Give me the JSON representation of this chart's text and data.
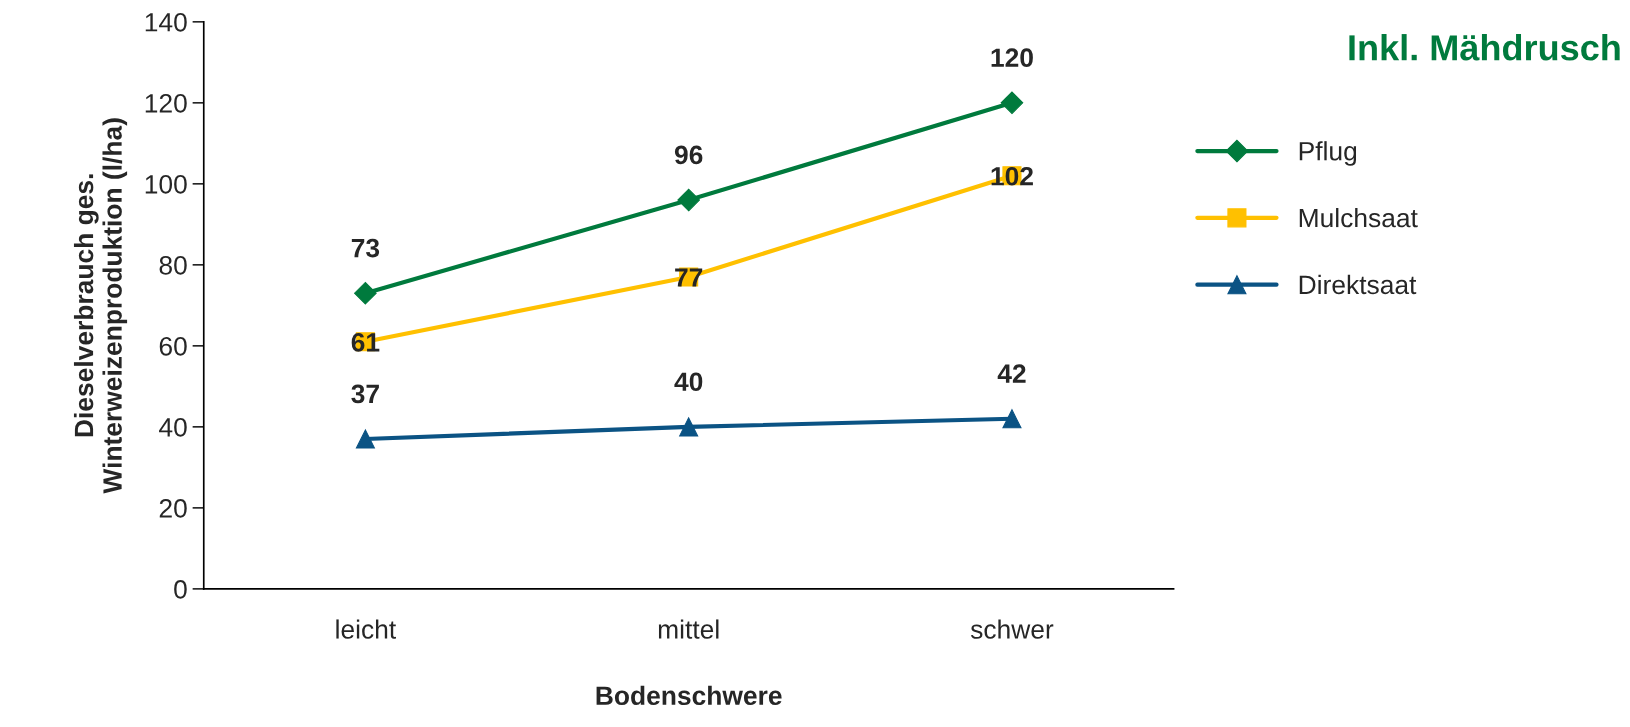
{
  "chart_data": {
    "type": "line",
    "title": "Inkl. Mähdrusch",
    "xlabel": "Bodenschwere",
    "ylabel": "Dieselverbrauch ges.\nWinterweizenproduktion (l/ha)",
    "categories": [
      "leicht",
      "mittel",
      "schwer"
    ],
    "series": [
      {
        "name": "Pflug",
        "color": "#007a3d",
        "marker": "diamond",
        "values": [
          73,
          96,
          120
        ]
      },
      {
        "name": "Mulchsaat",
        "color": "#ffc000",
        "marker": "square",
        "values": [
          61,
          77,
          102
        ]
      },
      {
        "name": "Direktsaat",
        "color": "#0b5384",
        "marker": "triangle",
        "values": [
          37,
          40,
          42
        ]
      }
    ],
    "ylim": [
      0,
      140
    ],
    "yticks": [
      0,
      20,
      40,
      60,
      80,
      100,
      120,
      140
    ],
    "data_labels": true,
    "grid": false,
    "legend": "right",
    "line_style": "solid"
  }
}
